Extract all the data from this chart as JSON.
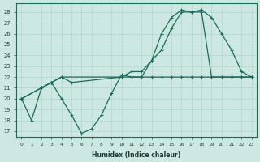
{
  "xlabel": "Humidex (Indice chaleur)",
  "bg_color": "#cde8e2",
  "line_color": "#1a6b5a",
  "grid_color": "#b0d8cf",
  "xlim": [
    -0.5,
    23.5
  ],
  "ylim": [
    16.5,
    28.8
  ],
  "yticks": [
    17,
    18,
    19,
    20,
    21,
    22,
    23,
    24,
    25,
    26,
    27,
    28
  ],
  "xticks": [
    0,
    1,
    2,
    3,
    4,
    5,
    6,
    7,
    8,
    9,
    10,
    11,
    12,
    13,
    14,
    15,
    16,
    17,
    18,
    19,
    20,
    21,
    22,
    23
  ],
  "line1_x": [
    0,
    1,
    2,
    3,
    4,
    5,
    6,
    7,
    8,
    9,
    10,
    11,
    12,
    13,
    14,
    15,
    16,
    17,
    18,
    19,
    20,
    21,
    22,
    23
  ],
  "line1_y": [
    20,
    18,
    21,
    21.5,
    20,
    18.5,
    16.8,
    17.2,
    18.5,
    20.5,
    22.2,
    22,
    22,
    23.5,
    26,
    27.5,
    28.2,
    28,
    28,
    22,
    22,
    22,
    22,
    22
  ],
  "line2_x": [
    0,
    2,
    3,
    4,
    5,
    10,
    11,
    12,
    13,
    14,
    15,
    16,
    17,
    18,
    19,
    20,
    21,
    22,
    23
  ],
  "line2_y": [
    20,
    21,
    21.5,
    22,
    21.5,
    22,
    22.5,
    22.5,
    23.5,
    24.5,
    26.5,
    28,
    28,
    28.2,
    27.5,
    26,
    24.5,
    22.5,
    22
  ],
  "line3_x": [
    0,
    2,
    3,
    4,
    10,
    11,
    12,
    13,
    14,
    15,
    16,
    17,
    18,
    19,
    20,
    21,
    22,
    23
  ],
  "line3_y": [
    20,
    21,
    21.5,
    22,
    22,
    22,
    22,
    22,
    22,
    22,
    22,
    22,
    22,
    22,
    22,
    22,
    22,
    22
  ]
}
